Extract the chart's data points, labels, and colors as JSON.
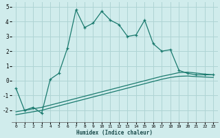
{
  "x": [
    0,
    1,
    2,
    3,
    4,
    5,
    6,
    7,
    8,
    9,
    10,
    11,
    12,
    13,
    14,
    15,
    16,
    17,
    18,
    19,
    20,
    21,
    22,
    23
  ],
  "y_main": [
    -0.5,
    -2.0,
    -1.8,
    -2.2,
    0.1,
    0.5,
    2.2,
    4.8,
    3.6,
    3.9,
    4.7,
    4.1,
    3.8,
    3.0,
    3.1,
    4.1,
    2.5,
    2.0,
    2.1,
    0.7,
    0.5,
    0.4,
    0.4,
    0.4
  ],
  "y_line1": [
    -2.1,
    -2.0,
    -1.9,
    -1.8,
    -1.65,
    -1.5,
    -1.35,
    -1.2,
    -1.05,
    -0.9,
    -0.75,
    -0.6,
    -0.45,
    -0.3,
    -0.15,
    0.0,
    0.15,
    0.3,
    0.42,
    0.55,
    0.58,
    0.52,
    0.45,
    0.4
  ],
  "y_line2": [
    -2.3,
    -2.2,
    -2.1,
    -2.0,
    -1.85,
    -1.7,
    -1.55,
    -1.4,
    -1.25,
    -1.1,
    -0.95,
    -0.8,
    -0.65,
    -0.5,
    -0.35,
    -0.2,
    -0.05,
    0.1,
    0.22,
    0.3,
    0.32,
    0.28,
    0.25,
    0.22
  ],
  "line_color": "#1a7a6e",
  "bg_color": "#d0ecec",
  "grid_color": "#aed4d4",
  "xlabel": "Humidex (Indice chaleur)",
  "ylim": [
    -2.8,
    5.3
  ],
  "xlim": [
    -0.5,
    23.5
  ],
  "yticks": [
    -2,
    -1,
    0,
    1,
    2,
    3,
    4,
    5
  ],
  "xticks": [
    0,
    1,
    2,
    3,
    4,
    5,
    6,
    7,
    8,
    9,
    10,
    11,
    12,
    13,
    14,
    15,
    16,
    17,
    18,
    19,
    20,
    21,
    22,
    23
  ]
}
